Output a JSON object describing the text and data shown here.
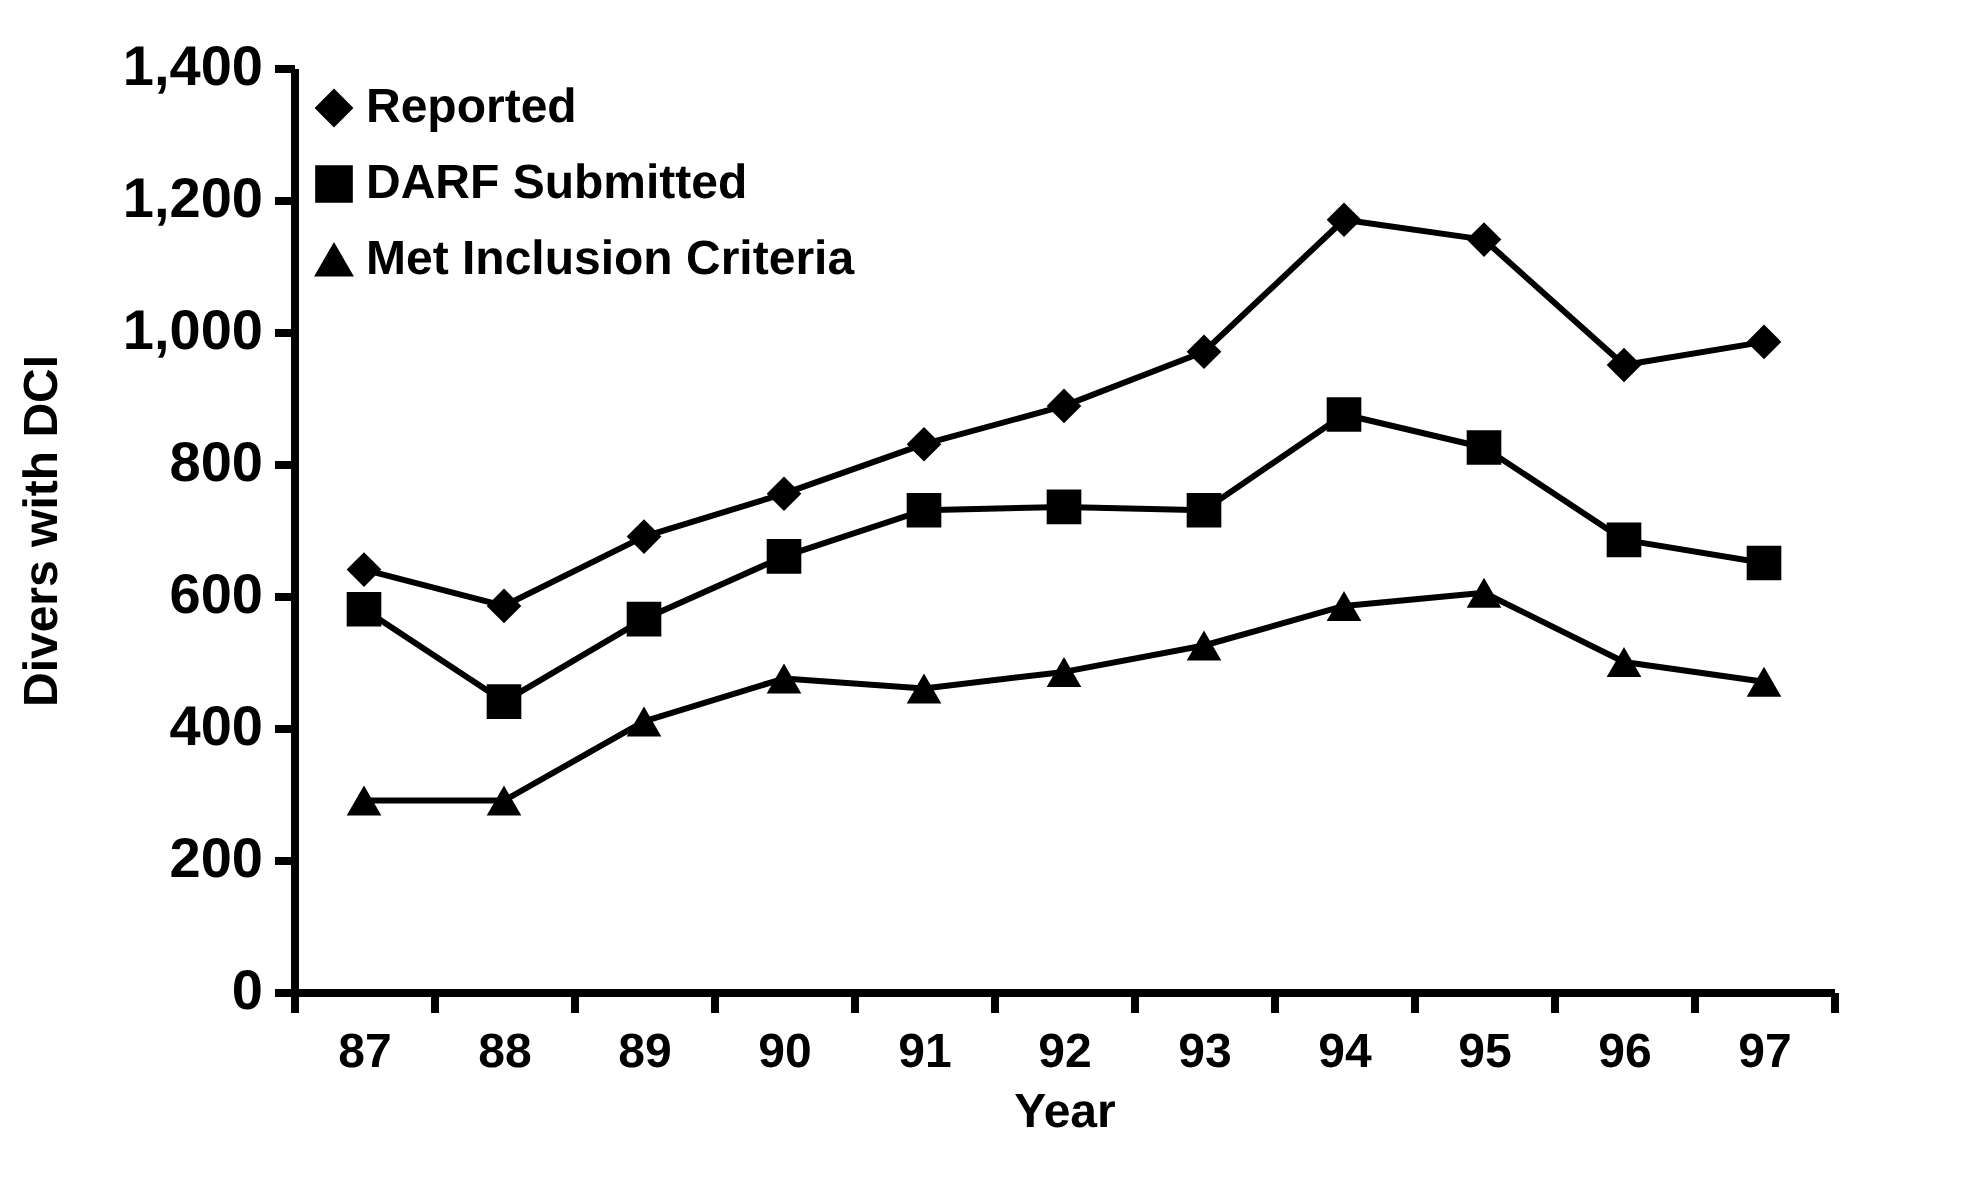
{
  "chart_data": {
    "type": "line",
    "xlabel": "Year",
    "ylabel": "Divers with DCI",
    "categories": [
      "87",
      "88",
      "89",
      "90",
      "91",
      "92",
      "93",
      "94",
      "95",
      "96",
      "97"
    ],
    "ylim": [
      0,
      1400
    ],
    "yticks": [
      0,
      {
        "value": 200,
        "label": "200"
      },
      {
        "value": 400,
        "label": "400"
      },
      {
        "value": 600,
        "label": "600"
      },
      {
        "value": 800,
        "label": "800"
      },
      {
        "value": 1000,
        "label": "1,000"
      },
      {
        "value": 1200,
        "label": "1,200"
      },
      {
        "value": 1400,
        "label": "1,400"
      }
    ],
    "grid": false,
    "legend": "top left",
    "line_style": "solid",
    "series": [
      {
        "name": "Reported",
        "color": "#000000",
        "marker": "diamond",
        "values": [
          640,
          585,
          690,
          755,
          830,
          888,
          970,
          1170,
          1140,
          950,
          985
        ]
      },
      {
        "name": "DARF Submitted",
        "color": "#000000",
        "marker": "square",
        "values": [
          580,
          440,
          565,
          660,
          730,
          735,
          730,
          875,
          825,
          685,
          650
        ]
      },
      {
        "name": "Met Inclusion Criteria",
        "color": "#000000",
        "marker": "triangle",
        "values": [
          290,
          290,
          410,
          475,
          460,
          485,
          525,
          585,
          605,
          500,
          470
        ]
      }
    ]
  }
}
